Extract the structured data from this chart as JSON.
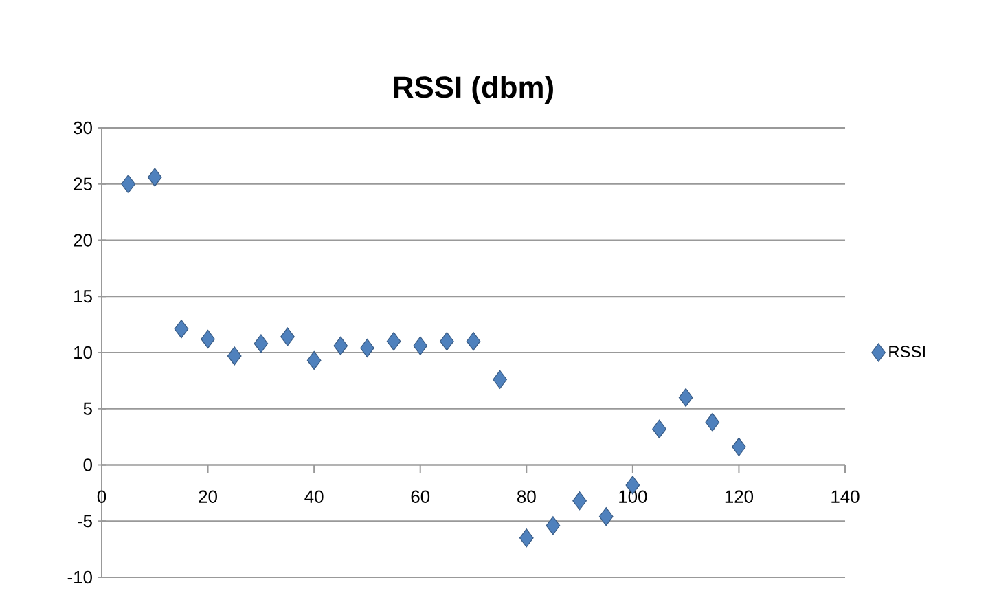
{
  "chart_data": {
    "type": "scatter",
    "title": "RSSI (dbm)",
    "x": [
      5,
      10,
      15,
      20,
      25,
      30,
      35,
      40,
      45,
      50,
      55,
      60,
      65,
      70,
      75,
      80,
      85,
      90,
      95,
      100,
      105,
      110,
      115,
      120
    ],
    "series": [
      {
        "name": "RSSI",
        "color": "#4f81bd",
        "values": [
          25.0,
          25.6,
          12.1,
          11.2,
          9.7,
          10.8,
          11.4,
          9.3,
          10.6,
          10.4,
          11.0,
          10.6,
          11.0,
          11.0,
          7.6,
          -6.5,
          -5.4,
          -3.2,
          -4.6,
          -1.8,
          3.2,
          6.0,
          3.8,
          1.6
        ]
      }
    ],
    "xlim": [
      0,
      140
    ],
    "xticks": [
      0,
      20,
      40,
      60,
      80,
      100,
      120,
      140
    ],
    "ylim": [
      -10,
      30
    ],
    "yticks": [
      -10,
      -5,
      0,
      5,
      10,
      15,
      20,
      25,
      30
    ],
    "grid": "y",
    "legend": "right",
    "marker": "diamond"
  }
}
